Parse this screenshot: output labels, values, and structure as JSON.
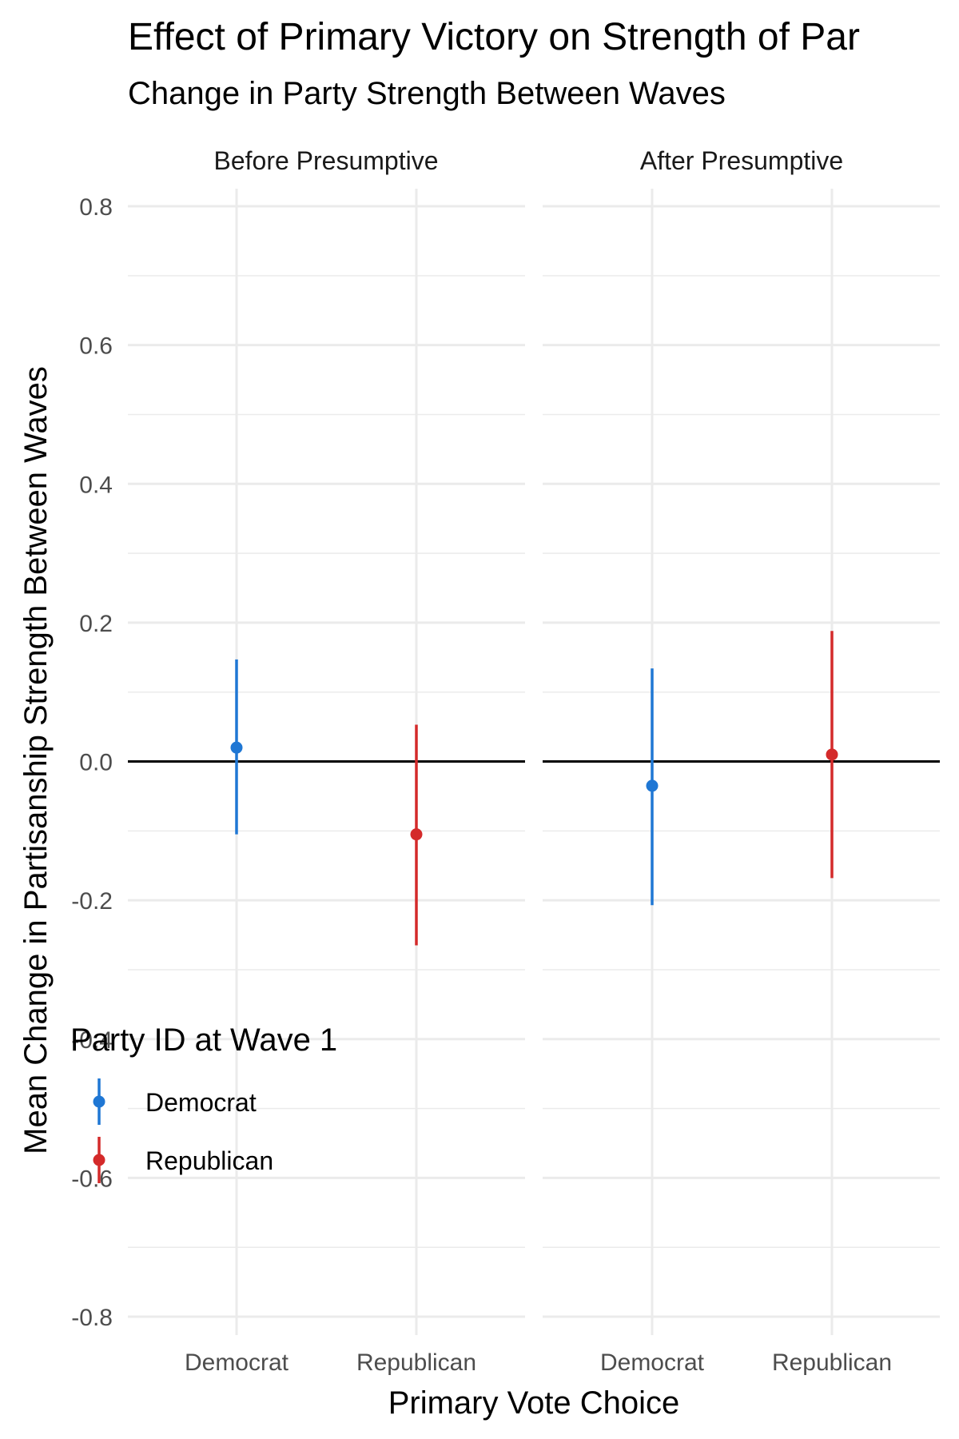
{
  "chart_data": {
    "type": "scatter",
    "title": "Effect of Primary Victory on Strength of Par",
    "subtitle": "Change in Party Strength Between Waves",
    "xlabel": "Primary Vote Choice",
    "ylabel": "Mean Change in Partisanship Strength Between Waves",
    "ylim": [
      -0.8,
      0.8
    ],
    "y_ticks": [
      "0.8",
      "0.6",
      "0.4",
      "0.2",
      "0.0",
      "-0.2",
      "-0.4",
      "-0.6",
      "-0.8"
    ],
    "categories": [
      "Democrat",
      "Republican"
    ],
    "facets": [
      "Before Presumptive",
      "After Presumptive"
    ],
    "reference_line_y": 0,
    "grid": true,
    "legend": {
      "title": "Party ID at Wave 1",
      "placement": "bottom-left",
      "entries": [
        "Democrat",
        "Republican"
      ]
    },
    "series": [
      {
        "name": "Democrat",
        "color": "#1f77d4",
        "points": [
          {
            "facet": "Before Presumptive",
            "x": "Democrat",
            "y": 0.02,
            "ymin": -0.105,
            "ymax": 0.147
          },
          {
            "facet": "After Presumptive",
            "x": "Democrat",
            "y": -0.035,
            "ymin": -0.207,
            "ymax": 0.134
          }
        ]
      },
      {
        "name": "Republican",
        "color": "#d42a2a",
        "points": [
          {
            "facet": "Before Presumptive",
            "x": "Republican",
            "y": -0.105,
            "ymin": -0.265,
            "ymax": 0.053
          },
          {
            "facet": "After Presumptive",
            "x": "Republican",
            "y": 0.01,
            "ymin": -0.168,
            "ymax": 0.188
          }
        ]
      }
    ]
  }
}
